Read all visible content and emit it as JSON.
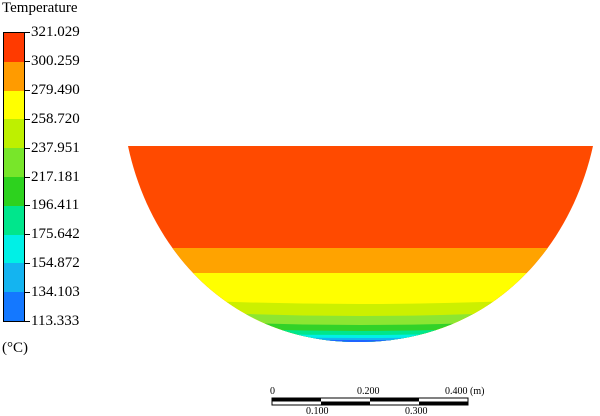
{
  "legend": {
    "title": "Temperature",
    "unit": "(°C)",
    "ticks": [
      "321.029",
      "300.259",
      "279.490",
      "258.720",
      "237.951",
      "217.181",
      "196.411",
      "175.642",
      "154.872",
      "134.103",
      "113.333"
    ],
    "band_colors": [
      "#ff3a00",
      "#ff9b00",
      "#ffff00",
      "#bef000",
      "#78e62a",
      "#2dd21e",
      "#00e68c",
      "#00f0e6",
      "#14b4f0",
      "#1478ff"
    ]
  },
  "contour": {
    "bands": [
      {
        "name": "band-321",
        "color": "#ff4a00"
      },
      {
        "name": "band-300",
        "color": "#ffa300"
      },
      {
        "name": "band-279",
        "color": "#ffff00"
      },
      {
        "name": "band-258",
        "color": "#ccf000"
      },
      {
        "name": "band-237",
        "color": "#8ce632"
      },
      {
        "name": "band-217",
        "color": "#32d228"
      },
      {
        "name": "band-196",
        "color": "#00e68c"
      },
      {
        "name": "band-175",
        "color": "#00f0e6"
      },
      {
        "name": "band-154",
        "color": "#14b4f0"
      },
      {
        "name": "band-134",
        "color": "#1e64ff"
      }
    ]
  },
  "scale_bar": {
    "top_labels": [
      "0",
      "0.200",
      "0.400 (m)"
    ],
    "bottom_labels": [
      "0.100",
      "0.300"
    ]
  }
}
